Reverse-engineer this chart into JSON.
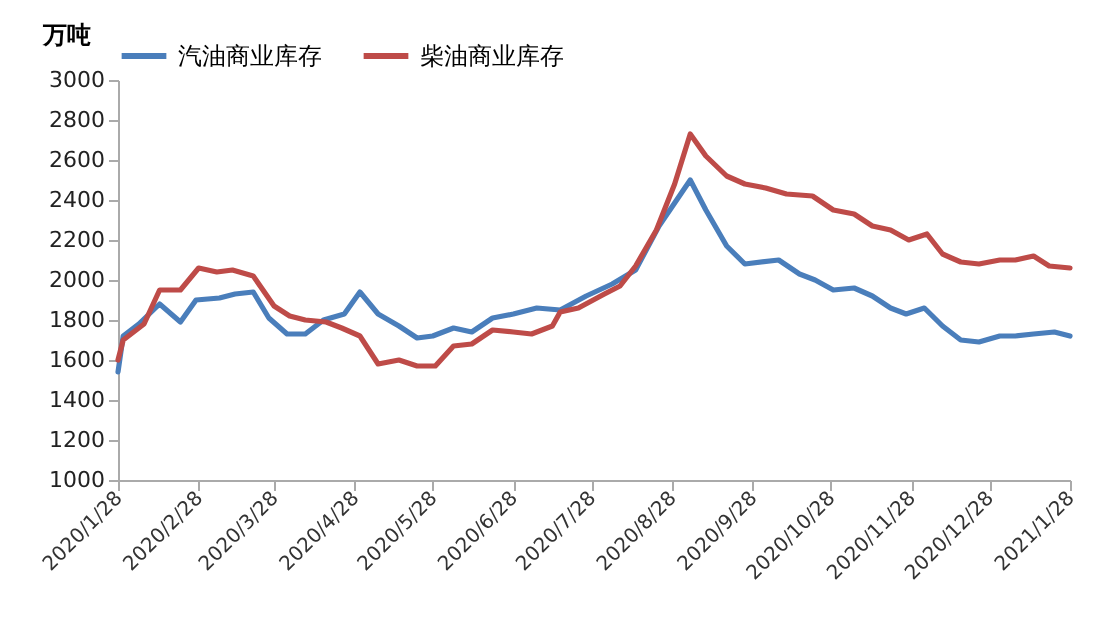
{
  "chart_data": {
    "type": "line",
    "ylabel": "万吨",
    "legend": "top",
    "grid": false,
    "xlim": [
      "2020-01-28",
      "2021-01-28"
    ],
    "xticks": [
      {
        "value": "2020-01-28",
        "label": "2020/1/28"
      },
      {
        "value": "2020-02-28",
        "label": "2020/2/28"
      },
      {
        "value": "2020-03-28",
        "label": "2020/3/28"
      },
      {
        "value": "2020-04-28",
        "label": "2020/4/28"
      },
      {
        "value": "2020-05-28",
        "label": "2020/5/28"
      },
      {
        "value": "2020-06-28",
        "label": "2020/6/28"
      },
      {
        "value": "2020-07-28",
        "label": "2020/7/28"
      },
      {
        "value": "2020-08-28",
        "label": "2020/8/28"
      },
      {
        "value": "2020-09-28",
        "label": "2020/9/28"
      },
      {
        "value": "2020-10-28",
        "label": "2020/10/28"
      },
      {
        "value": "2020-11-28",
        "label": "2020/11/28"
      },
      {
        "value": "2020-12-28",
        "label": "2020/12/28"
      },
      {
        "value": "2021-01-28",
        "label": "2021/1/28"
      }
    ],
    "ylim": [
      1000,
      3000
    ],
    "yticks": [
      1000,
      1200,
      1400,
      1600,
      1800,
      2000,
      2200,
      2400,
      2600,
      2800,
      3000
    ],
    "series": [
      {
        "name": "汽油商业库存",
        "color": "#4a7ebb",
        "x": [
          "2020-01-28",
          "2020-01-30",
          "2020-02-05",
          "2020-02-13",
          "2020-02-21",
          "2020-02-27",
          "2020-03-07",
          "2020-03-13",
          "2020-03-20",
          "2020-03-26",
          "2020-04-02",
          "2020-04-09",
          "2020-04-16",
          "2020-04-24",
          "2020-04-30",
          "2020-05-07",
          "2020-05-15",
          "2020-05-22",
          "2020-05-28",
          "2020-06-05",
          "2020-06-12",
          "2020-06-20",
          "2020-06-28",
          "2020-07-07",
          "2020-07-16",
          "2020-07-26",
          "2020-08-05",
          "2020-08-14",
          "2020-08-23",
          "2020-09-04",
          "2020-09-10",
          "2020-09-18",
          "2020-09-25",
          "2020-10-08",
          "2020-10-16",
          "2020-10-22",
          "2020-10-29",
          "2020-11-06",
          "2020-11-13",
          "2020-11-20",
          "2020-11-26",
          "2020-12-03",
          "2020-12-10",
          "2020-12-17",
          "2020-12-24",
          "2021-01-01",
          "2021-01-07",
          "2021-01-14",
          "2021-01-22",
          "2021-01-28"
        ],
        "values": [
          1540,
          1720,
          1780,
          1880,
          1790,
          1900,
          1910,
          1930,
          1940,
          1810,
          1730,
          1730,
          1800,
          1830,
          1940,
          1830,
          1770,
          1710,
          1720,
          1760,
          1740,
          1810,
          1830,
          1860,
          1850,
          1920,
          1980,
          2050,
          2270,
          2500,
          2350,
          2170,
          2080,
          2100,
          2030,
          2000,
          1950,
          1960,
          1920,
          1860,
          1830,
          1860,
          1770,
          1700,
          1690,
          1720,
          1720,
          1730,
          1740,
          1720
        ]
      },
      {
        "name": "柴油商业库存",
        "color": "#be4b48",
        "x": [
          "2020-01-28",
          "2020-01-30",
          "2020-02-07",
          "2020-02-13",
          "2020-02-21",
          "2020-02-28",
          "2020-03-06",
          "2020-03-12",
          "2020-03-20",
          "2020-03-28",
          "2020-04-03",
          "2020-04-09",
          "2020-04-17",
          "2020-04-23",
          "2020-04-30",
          "2020-05-07",
          "2020-05-15",
          "2020-05-22",
          "2020-05-29",
          "2020-06-05",
          "2020-06-12",
          "2020-06-20",
          "2020-06-28",
          "2020-07-05",
          "2020-07-13",
          "2020-07-16",
          "2020-07-23",
          "2020-08-02",
          "2020-08-08",
          "2020-08-14",
          "2020-08-22",
          "2020-08-29",
          "2020-09-04",
          "2020-09-10",
          "2020-09-18",
          "2020-09-25",
          "2020-10-03",
          "2020-10-11",
          "2020-10-21",
          "2020-10-29",
          "2020-11-06",
          "2020-11-13",
          "2020-11-20",
          "2020-11-27",
          "2020-12-04",
          "2020-12-10",
          "2020-12-17",
          "2020-12-24",
          "2021-01-01",
          "2021-01-07",
          "2021-01-14",
          "2021-01-20",
          "2021-01-28"
        ],
        "values": [
          1600,
          1700,
          1780,
          1950,
          1950,
          2060,
          2040,
          2050,
          2020,
          1870,
          1820,
          1800,
          1790,
          1760,
          1720,
          1580,
          1600,
          1570,
          1570,
          1670,
          1680,
          1750,
          1740,
          1730,
          1770,
          1840,
          1860,
          1930,
          1970,
          2070,
          2250,
          2480,
          2730,
          2620,
          2520,
          2480,
          2460,
          2430,
          2420,
          2350,
          2330,
          2270,
          2250,
          2200,
          2230,
          2130,
          2090,
          2080,
          2100,
          2100,
          2120,
          2070,
          2060
        ]
      }
    ]
  }
}
